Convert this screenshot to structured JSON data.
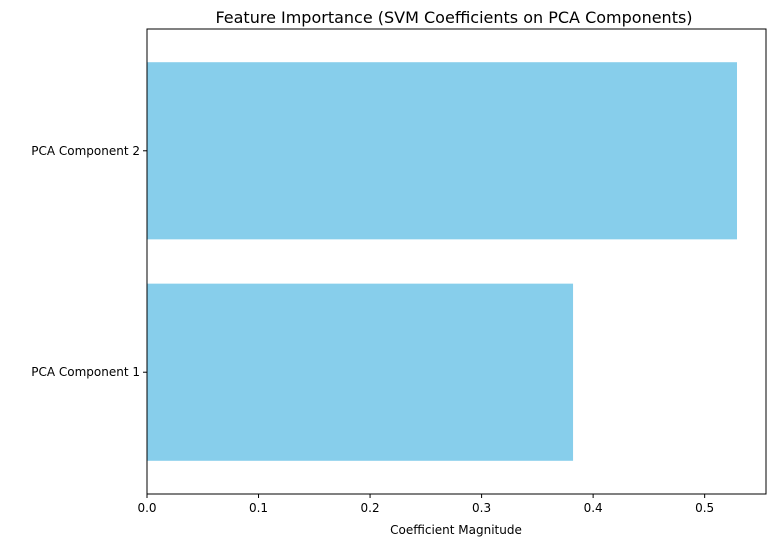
{
  "chart_data": {
    "type": "bar",
    "orientation": "horizontal",
    "title": "Feature Importance (SVM Coefficients on PCA Components)",
    "xlabel": "Coefficient Magnitude",
    "ylabel": "",
    "categories": [
      "PCA Component 1",
      "PCA Component 2"
    ],
    "values": [
      0.382,
      0.529
    ],
    "xlim": [
      0,
      0.555
    ],
    "xticks": [
      "0.0",
      "0.1",
      "0.2",
      "0.3",
      "0.4",
      "0.5"
    ],
    "xtick_values": [
      0.0,
      0.1,
      0.2,
      0.3,
      0.4,
      0.5
    ],
    "bar_color": "#87CEEB",
    "grid": false,
    "legend": false
  }
}
